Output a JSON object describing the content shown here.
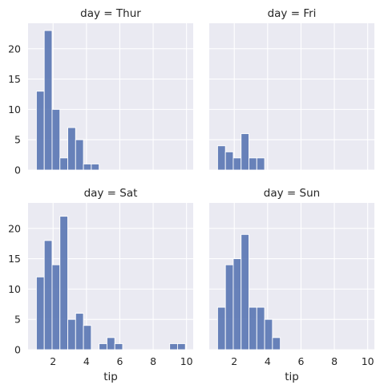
{
  "chart_data": {
    "type": "bar",
    "kind": "faceted-histogram",
    "xlabel": "tip",
    "ylabel": "",
    "xlim": [
      0.5,
      10.4
    ],
    "ylim": [
      0,
      24.2
    ],
    "xticks": [
      2,
      4,
      6,
      8,
      10
    ],
    "yticks": [
      0,
      5,
      10,
      15,
      20
    ],
    "grid": true,
    "bar_color": "#5975b3",
    "background_color": "#eaeaf2",
    "bin_edges": [
      1.0,
      1.47,
      1.94,
      2.41,
      2.88,
      3.35,
      3.82,
      4.29,
      4.76,
      5.23,
      5.7,
      6.17,
      6.64,
      7.11,
      7.58,
      8.05,
      8.52,
      8.99,
      9.46,
      9.93
    ],
    "panels": [
      {
        "title": "day = Thur",
        "counts": [
          13,
          23,
          10,
          2,
          7,
          5,
          1,
          1,
          0,
          0,
          0,
          0,
          0,
          0,
          0,
          0,
          0,
          0,
          0
        ]
      },
      {
        "title": "day = Fri",
        "counts": [
          4,
          3,
          2,
          6,
          2,
          2,
          0,
          0,
          0,
          0,
          0,
          0,
          0,
          0,
          0,
          0,
          0,
          0,
          0
        ]
      },
      {
        "title": "day = Sat",
        "counts": [
          12,
          18,
          14,
          22,
          5,
          6,
          4,
          0,
          1,
          2,
          1,
          0,
          0,
          0,
          0,
          0,
          0,
          1,
          1
        ]
      },
      {
        "title": "day = Sun",
        "counts": [
          7,
          14,
          15,
          19,
          7,
          7,
          5,
          2,
          0,
          0,
          0,
          0,
          0,
          0,
          0,
          0,
          0,
          0,
          0
        ]
      }
    ]
  }
}
